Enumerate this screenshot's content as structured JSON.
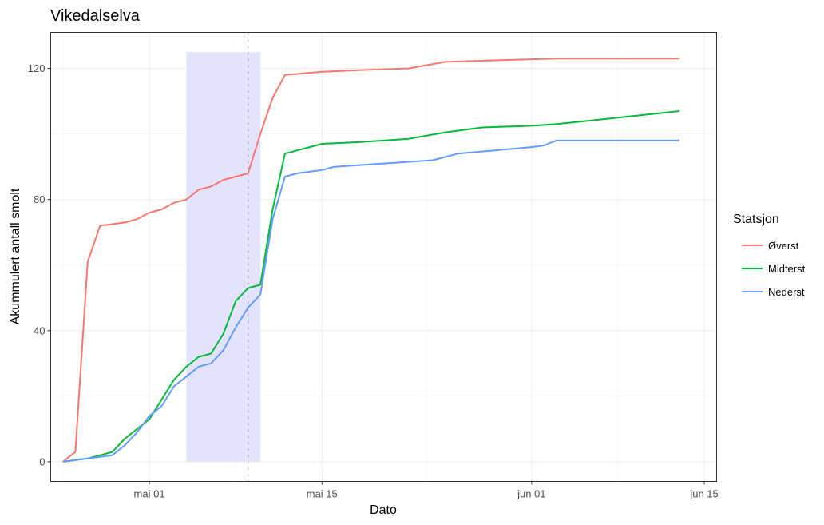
{
  "chart_data": {
    "type": "line",
    "title": "Vikedalselva",
    "xlabel": "Dato",
    "ylabel": "Akummulert antall smolt",
    "x_type": "date",
    "xlim": [
      "2025-04-23",
      "2025-06-16"
    ],
    "ylim": [
      -6,
      131
    ],
    "x_ticks": [
      {
        "date": "2025-05-01",
        "label": "mai 01"
      },
      {
        "date": "2025-05-15",
        "label": "mai 15"
      },
      {
        "date": "2025-06-01",
        "label": "jun 01"
      },
      {
        "date": "2025-06-15",
        "label": "jun 15"
      }
    ],
    "y_ticks": [
      0,
      40,
      80,
      120
    ],
    "grid": true,
    "shaded_region": {
      "x_start": "2025-05-04",
      "x_end": "2025-05-10",
      "y_start": 0,
      "y_end": 125,
      "color": "#e3e3fd"
    },
    "vline": {
      "x": "2025-05-09",
      "color": "#8080b0",
      "style": "dashed"
    },
    "legend": {
      "title": "Statsjon",
      "position": "right"
    },
    "series": [
      {
        "name": "Øverst",
        "color": "#f8766d",
        "points": [
          [
            "2025-04-24",
            0
          ],
          [
            "2025-04-25",
            3
          ],
          [
            "2025-04-26",
            61
          ],
          [
            "2025-04-27",
            72
          ],
          [
            "2025-04-28",
            72.5
          ],
          [
            "2025-04-29",
            73
          ],
          [
            "2025-04-30",
            74
          ],
          [
            "2025-05-01",
            76
          ],
          [
            "2025-05-02",
            77
          ],
          [
            "2025-05-03",
            79
          ],
          [
            "2025-05-04",
            80
          ],
          [
            "2025-05-05",
            83
          ],
          [
            "2025-05-06",
            84
          ],
          [
            "2025-05-07",
            86
          ],
          [
            "2025-05-08",
            87
          ],
          [
            "2025-05-09",
            88
          ],
          [
            "2025-05-10",
            100
          ],
          [
            "2025-05-11",
            111
          ],
          [
            "2025-05-12",
            118
          ],
          [
            "2025-05-15",
            119
          ],
          [
            "2025-05-18",
            119.5
          ],
          [
            "2025-05-22",
            120
          ],
          [
            "2025-05-25",
            122
          ],
          [
            "2025-06-01",
            122.8
          ],
          [
            "2025-06-03",
            123
          ],
          [
            "2025-06-13",
            123
          ]
        ]
      },
      {
        "name": "Midterst",
        "color": "#00ba38",
        "points": [
          [
            "2025-04-24",
            0
          ],
          [
            "2025-04-25",
            0.5
          ],
          [
            "2025-04-26",
            1
          ],
          [
            "2025-04-27",
            2
          ],
          [
            "2025-04-28",
            3
          ],
          [
            "2025-04-29",
            7
          ],
          [
            "2025-04-30",
            10
          ],
          [
            "2025-05-01",
            13
          ],
          [
            "2025-05-02",
            19
          ],
          [
            "2025-05-03",
            25
          ],
          [
            "2025-05-04",
            29
          ],
          [
            "2025-05-05",
            32
          ],
          [
            "2025-05-06",
            33
          ],
          [
            "2025-05-07",
            39
          ],
          [
            "2025-05-08",
            49
          ],
          [
            "2025-05-09",
            53
          ],
          [
            "2025-05-10",
            54
          ],
          [
            "2025-05-11",
            77
          ],
          [
            "2025-05-12",
            94
          ],
          [
            "2025-05-15",
            97
          ],
          [
            "2025-05-18",
            97.5
          ],
          [
            "2025-05-22",
            98.5
          ],
          [
            "2025-05-25",
            100.5
          ],
          [
            "2025-05-28",
            102
          ],
          [
            "2025-06-01",
            102.5
          ],
          [
            "2025-06-03",
            103
          ],
          [
            "2025-06-13",
            107
          ]
        ]
      },
      {
        "name": "Nederst",
        "color": "#619cff",
        "points": [
          [
            "2025-04-24",
            0
          ],
          [
            "2025-04-25",
            0.5
          ],
          [
            "2025-04-26",
            1
          ],
          [
            "2025-04-27",
            1.5
          ],
          [
            "2025-04-28",
            2
          ],
          [
            "2025-04-29",
            5
          ],
          [
            "2025-04-30",
            9
          ],
          [
            "2025-05-01",
            14
          ],
          [
            "2025-05-02",
            17
          ],
          [
            "2025-05-03",
            23
          ],
          [
            "2025-05-04",
            26
          ],
          [
            "2025-05-05",
            29
          ],
          [
            "2025-05-06",
            30
          ],
          [
            "2025-05-07",
            34
          ],
          [
            "2025-05-08",
            41
          ],
          [
            "2025-05-09",
            47
          ],
          [
            "2025-05-10",
            51
          ],
          [
            "2025-05-11",
            74
          ],
          [
            "2025-05-12",
            87
          ],
          [
            "2025-05-13",
            88
          ],
          [
            "2025-05-15",
            89
          ],
          [
            "2025-05-16",
            90
          ],
          [
            "2025-05-20",
            91
          ],
          [
            "2025-05-24",
            92
          ],
          [
            "2025-05-26",
            94
          ],
          [
            "2025-05-29",
            95
          ],
          [
            "2025-06-01",
            96
          ],
          [
            "2025-06-02",
            96.5
          ],
          [
            "2025-06-03",
            98
          ],
          [
            "2025-06-13",
            98
          ]
        ]
      }
    ]
  }
}
